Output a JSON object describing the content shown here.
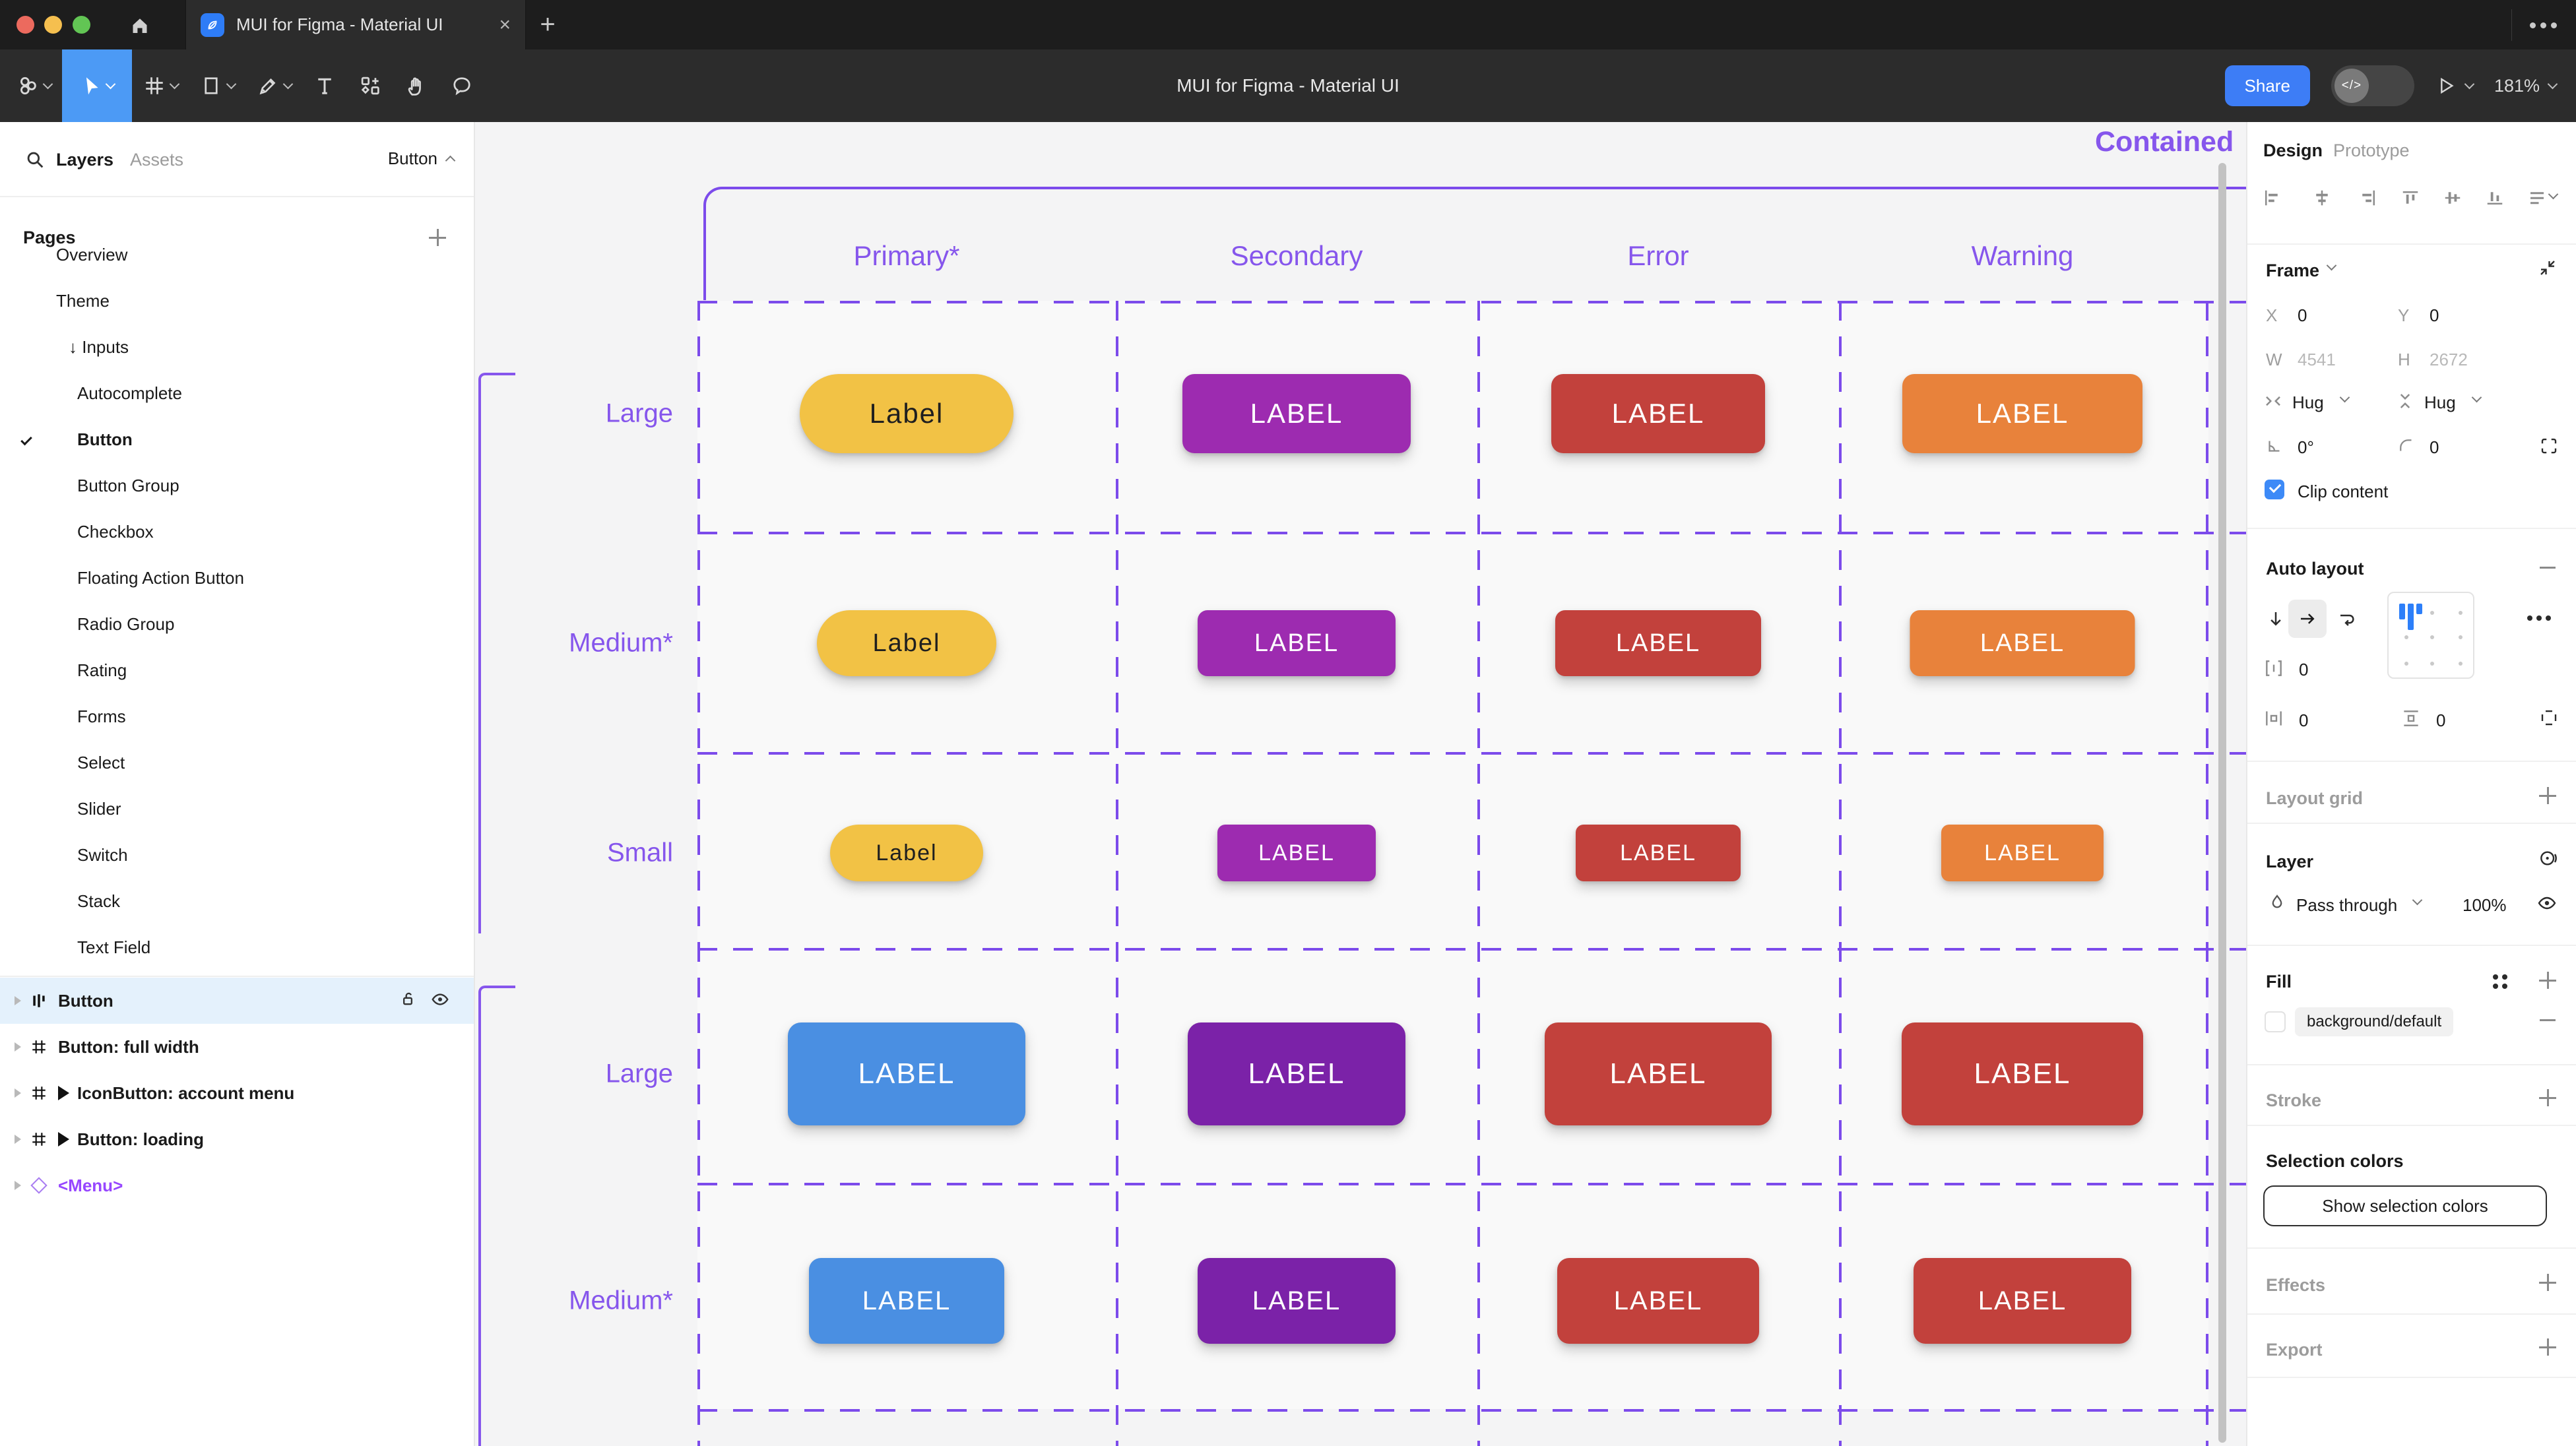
{
  "window": {
    "tab_title": "MUI for Figma - Material UI"
  },
  "toolbar": {
    "title": "MUI for Figma - Material UI",
    "share": "Share",
    "dev_toggle": "</>",
    "zoom": "181%"
  },
  "sidebar": {
    "layers_tab": "Layers",
    "assets_tab": "Assets",
    "current_page": "Button",
    "pages_header": "Pages",
    "pages": [
      {
        "label": "Overview",
        "level": 1
      },
      {
        "label": "Theme",
        "level": 1
      },
      {
        "label": "Inputs",
        "level": 1,
        "arrow": "↓"
      },
      {
        "label": "Autocomplete",
        "level": 2
      },
      {
        "label": "Button",
        "level": 2,
        "checked": true,
        "active": true
      },
      {
        "label": "Button Group",
        "level": 2
      },
      {
        "label": "Checkbox",
        "level": 2
      },
      {
        "label": "Floating Action Button",
        "level": 2
      },
      {
        "label": "Radio Group",
        "level": 2
      },
      {
        "label": "Rating",
        "level": 2
      },
      {
        "label": "Forms",
        "level": 2
      },
      {
        "label": "Select",
        "level": 2
      },
      {
        "label": "Slider",
        "level": 2
      },
      {
        "label": "Switch",
        "level": 2
      },
      {
        "label": "Stack",
        "level": 2
      },
      {
        "label": "Text Field",
        "level": 2
      }
    ],
    "layers": [
      {
        "label": "Button",
        "icon": "autolayout",
        "selected": true
      },
      {
        "label": "Button: full width",
        "icon": "frame"
      },
      {
        "label": "IconButton: account menu",
        "icon": "frame",
        "play": true
      },
      {
        "label": "Button: loading",
        "icon": "frame",
        "play": true
      },
      {
        "label": "<Menu>",
        "icon": "diamond",
        "purple": true
      }
    ]
  },
  "canvas": {
    "frame_title": "Contained",
    "columns": [
      "Primary*",
      "Secondary",
      "Error",
      "Warning"
    ],
    "purple_text": "#8656EC",
    "purple_line": "#7C4BEB",
    "rows": [
      {
        "label": "Large",
        "texts": [
          "Label",
          "LABEL",
          "LABEL",
          "LABEL"
        ],
        "colors": [
          "#F2C245",
          "#9D2BB0",
          "#C2413C",
          "#E8823B"
        ],
        "text_colors": [
          "#1F1F1F",
          "#FFFFFF",
          "#FFFFFF",
          "#FFFFFF"
        ],
        "pill": [
          true,
          false,
          false,
          false
        ]
      },
      {
        "label": "Medium*",
        "texts": [
          "Label",
          "LABEL",
          "LABEL",
          "LABEL"
        ],
        "colors": [
          "#F2C245",
          "#9D2BB0",
          "#C2413C",
          "#E8823B"
        ],
        "text_colors": [
          "#1F1F1F",
          "#FFFFFF",
          "#FFFFFF",
          "#FFFFFF"
        ],
        "pill": [
          true,
          false,
          false,
          false
        ]
      },
      {
        "label": "Small",
        "texts": [
          "Label",
          "LABEL",
          "LABEL",
          "LABEL"
        ],
        "colors": [
          "#F2C245",
          "#9D2BB0",
          "#C2413C",
          "#E8823B"
        ],
        "text_colors": [
          "#1F1F1F",
          "#FFFFFF",
          "#FFFFFF",
          "#FFFFFF"
        ],
        "pill": [
          true,
          false,
          false,
          false
        ]
      },
      {
        "label": "Large",
        "texts": [
          "LABEL",
          "LABEL",
          "LABEL",
          "LABEL"
        ],
        "colors": [
          "#4A8FE2",
          "#7B22A8",
          "#C2413C",
          "#C2413C"
        ],
        "text_colors": [
          "#FFFFFF",
          "#FFFFFF",
          "#FFFFFF",
          "#FFFFFF"
        ],
        "pill": [
          false,
          false,
          false,
          false
        ]
      },
      {
        "label": "Medium*",
        "texts": [
          "LABEL",
          "LABEL",
          "LABEL",
          "LABEL"
        ],
        "colors": [
          "#4A8FE2",
          "#7B22A8",
          "#C2413C",
          "#C2413C"
        ],
        "text_colors": [
          "#FFFFFF",
          "#FFFFFF",
          "#FFFFFF",
          "#FFFFFF"
        ],
        "pill": [
          false,
          false,
          false,
          false
        ]
      }
    ]
  },
  "inspector": {
    "tab_design": "Design",
    "tab_prototype": "Prototype",
    "frame": {
      "header": "Frame",
      "x_label": "X",
      "x": "0",
      "y_label": "Y",
      "y": "0",
      "w_label": "W",
      "w": "4541",
      "h_label": "H",
      "h": "2672",
      "hug_h": "Hug",
      "hug_v": "Hug",
      "rotation": "0°",
      "radius": "0",
      "clip": "Clip content"
    },
    "auto_layout": {
      "header": "Auto layout",
      "gap": "0",
      "pad_h": "0",
      "pad_v": "0"
    },
    "layout_grid": {
      "header": "Layout grid"
    },
    "layer": {
      "header": "Layer",
      "blend_mode": "Pass through",
      "opacity": "100%"
    },
    "fill": {
      "header": "Fill",
      "style": "background/default"
    },
    "stroke": {
      "header": "Stroke"
    },
    "selection_colors": {
      "header": "Selection colors",
      "button": "Show selection colors"
    },
    "effects": {
      "header": "Effects"
    },
    "export": {
      "header": "Export"
    }
  }
}
